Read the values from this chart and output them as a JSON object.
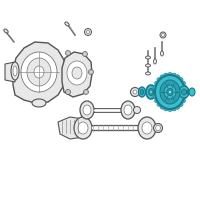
{
  "bg_color": "#ffffff",
  "highlight_color": "#3bbfcf",
  "highlight_color2": "#2a9fb0",
  "highlight_dark": "#1a7a8a",
  "gray_dark": "#777777",
  "gray_mid": "#999999",
  "gray_light": "#dddddd",
  "gray_outline": "#555555",
  "gray_fill": "#e8e8e8",
  "fig_w": 2.0,
  "fig_h": 2.0,
  "dpi": 100
}
